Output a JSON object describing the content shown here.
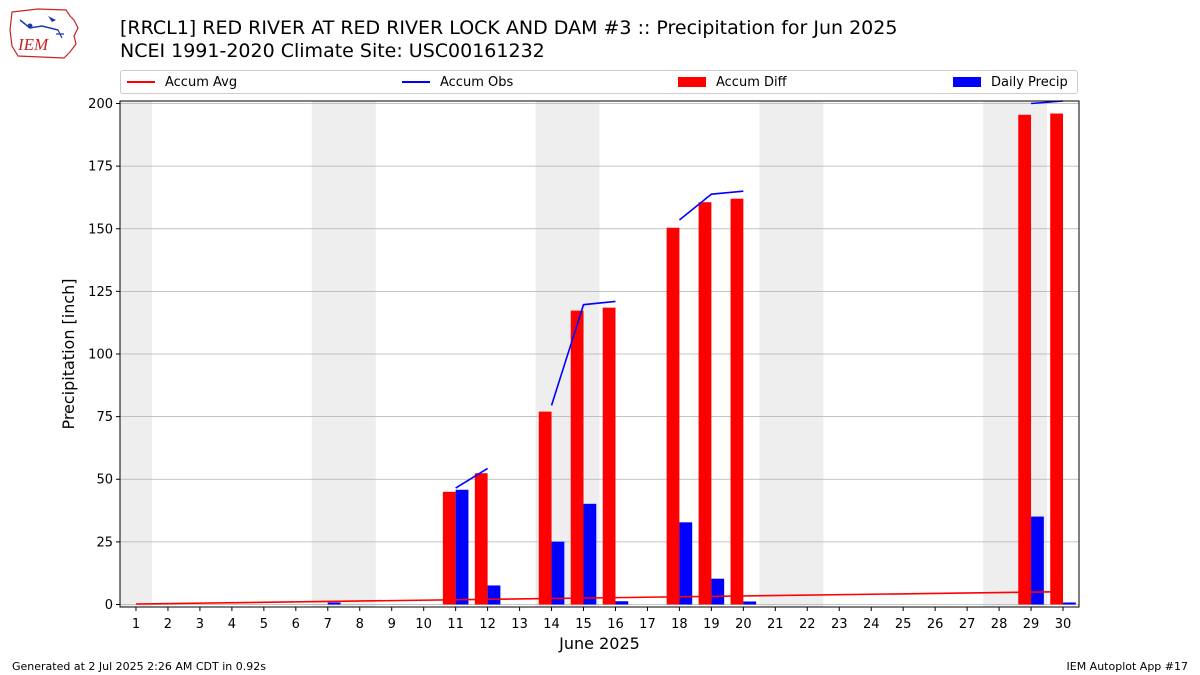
{
  "logo": {
    "text": "IEM"
  },
  "header": {
    "title": "[RRCL1] RED RIVER  AT RED RIVER LOCK AND DAM #3 :: Precipitation for Jun 2025",
    "subtitle": "NCEI 1991-2020 Climate Site: USC00161232"
  },
  "footer": {
    "generated": "Generated at 2 Jul 2025 2:26 AM CDT in 0.92s",
    "app": "IEM Autoplot App #17"
  },
  "colors": {
    "accum_avg": "#ff0000",
    "accum_obs": "#0000ff",
    "accum_diff": "#ff0000",
    "daily_precip": "#0000ff",
    "weekend_shade": "#eeeeee",
    "grid": "#b0b0b0"
  },
  "chart_data": {
    "type": "bar",
    "title": "[RRCL1] RED RIVER  AT RED RIVER LOCK AND DAM #3 :: Precipitation for Jun 2025",
    "xlabel": "June 2025",
    "ylabel": "Precipitation [inch]",
    "ylim": [
      -1,
      201
    ],
    "yticks": [
      0,
      25,
      50,
      75,
      100,
      125,
      150,
      175,
      200
    ],
    "xlim": [
      0.5,
      30.5
    ],
    "days": [
      1,
      2,
      3,
      4,
      5,
      6,
      7,
      8,
      9,
      10,
      11,
      12,
      13,
      14,
      15,
      16,
      17,
      18,
      19,
      20,
      21,
      22,
      23,
      24,
      25,
      26,
      27,
      28,
      29,
      30
    ],
    "weekend_shading": [
      [
        0.5,
        1.5
      ],
      [
        6.5,
        8.5
      ],
      [
        13.5,
        15.5
      ],
      [
        20.5,
        22.5
      ],
      [
        27.5,
        29.5
      ]
    ],
    "legend": [
      "Accum Avg",
      "Accum Obs",
      "Accum Diff",
      "Daily Precip"
    ],
    "series": [
      {
        "name": "Accum Avg",
        "kind": "line",
        "x": [
          1,
          30
        ],
        "values": [
          0.2,
          5.1
        ]
      },
      {
        "name": "Accum Obs",
        "kind": "line",
        "segments": [
          {
            "x": [
              11,
              12
            ],
            "values": [
              46.5,
              54.3
            ]
          },
          {
            "x": [
              14,
              15,
              16
            ],
            "values": [
              79.5,
              119.7,
              121.0
            ]
          },
          {
            "x": [
              18,
              19,
              20
            ],
            "values": [
              153.5,
              163.8,
              165.0
            ]
          },
          {
            "x": [
              29,
              30
            ],
            "values": [
              200.0,
              201.0
            ]
          }
        ]
      },
      {
        "name": "Accum Diff",
        "kind": "bar",
        "x": [
          11,
          12,
          14,
          15,
          16,
          18,
          19,
          20,
          29,
          30
        ],
        "values": [
          45.0,
          52.4,
          77.0,
          117.3,
          118.5,
          150.4,
          160.6,
          162.0,
          195.5,
          196.0
        ]
      },
      {
        "name": "Daily Precip",
        "kind": "bar",
        "x": [
          7,
          11,
          12,
          15,
          14,
          16,
          18,
          19,
          20,
          29,
          30
        ],
        "values": [
          0.8,
          45.8,
          7.6,
          40.2,
          25.1,
          1.3,
          32.8,
          10.3,
          1.2,
          35.1,
          0.8
        ]
      }
    ]
  }
}
